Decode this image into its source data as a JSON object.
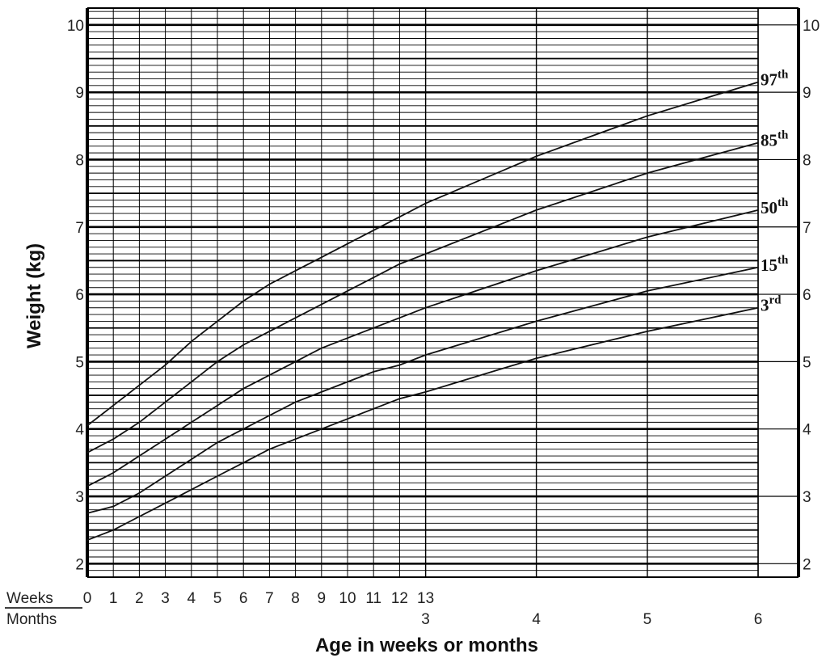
{
  "chart_data": {
    "type": "line",
    "ylabel": "Weight (kg)",
    "xlabel": "Age in weeks or months",
    "row_labels": {
      "weeks": "Weeks",
      "months": "Months"
    },
    "ylim": [
      1.8,
      10.25
    ],
    "y_ticks": [
      2,
      3,
      4,
      5,
      6,
      7,
      8,
      9,
      10
    ],
    "y_ticks_right": [
      "2",
      "3",
      "4",
      "5",
      "6",
      "7",
      "8",
      "9",
      "10"
    ],
    "week_ticks": [
      "0",
      "1",
      "2",
      "3",
      "4",
      "5",
      "6",
      "7",
      "8",
      "9",
      "10",
      "11",
      "12",
      "13"
    ],
    "month_ticks": [
      {
        "label": "3",
        "week": 13
      },
      {
        "label": "4",
        "week": 17.33
      },
      {
        "label": "5",
        "week": 21.67
      },
      {
        "label": "6",
        "week": 26
      }
    ],
    "grid": true,
    "series": [
      {
        "name": "97",
        "suffix": "th",
        "points": [
          [
            0,
            4.05
          ],
          [
            1,
            4.35
          ],
          [
            2,
            4.65
          ],
          [
            3,
            4.95
          ],
          [
            4,
            5.3
          ],
          [
            5,
            5.6
          ],
          [
            6,
            5.9
          ],
          [
            7,
            6.15
          ],
          [
            8,
            6.35
          ],
          [
            9,
            6.55
          ],
          [
            10,
            6.75
          ],
          [
            11,
            6.95
          ],
          [
            12,
            7.15
          ],
          [
            13,
            7.35
          ],
          [
            17.33,
            8.05
          ],
          [
            21.67,
            8.65
          ],
          [
            26,
            9.15
          ]
        ]
      },
      {
        "name": "85",
        "suffix": "th",
        "points": [
          [
            0,
            3.65
          ],
          [
            1,
            3.85
          ],
          [
            2,
            4.1
          ],
          [
            3,
            4.4
          ],
          [
            4,
            4.7
          ],
          [
            5,
            5.0
          ],
          [
            6,
            5.25
          ],
          [
            7,
            5.45
          ],
          [
            8,
            5.65
          ],
          [
            9,
            5.85
          ],
          [
            10,
            6.05
          ],
          [
            11,
            6.25
          ],
          [
            12,
            6.45
          ],
          [
            13,
            6.6
          ],
          [
            17.33,
            7.25
          ],
          [
            21.67,
            7.8
          ],
          [
            26,
            8.25
          ]
        ]
      },
      {
        "name": "50",
        "suffix": "th",
        "points": [
          [
            0,
            3.15
          ],
          [
            1,
            3.35
          ],
          [
            2,
            3.6
          ],
          [
            3,
            3.85
          ],
          [
            4,
            4.1
          ],
          [
            5,
            4.35
          ],
          [
            6,
            4.6
          ],
          [
            7,
            4.8
          ],
          [
            8,
            5.0
          ],
          [
            9,
            5.2
          ],
          [
            10,
            5.35
          ],
          [
            11,
            5.5
          ],
          [
            12,
            5.65
          ],
          [
            13,
            5.8
          ],
          [
            17.33,
            6.35
          ],
          [
            21.67,
            6.85
          ],
          [
            26,
            7.25
          ]
        ]
      },
      {
        "name": "15",
        "suffix": "th",
        "points": [
          [
            0,
            2.75
          ],
          [
            1,
            2.85
          ],
          [
            2,
            3.05
          ],
          [
            3,
            3.3
          ],
          [
            4,
            3.55
          ],
          [
            5,
            3.8
          ],
          [
            6,
            4.0
          ],
          [
            7,
            4.2
          ],
          [
            8,
            4.4
          ],
          [
            9,
            4.55
          ],
          [
            10,
            4.7
          ],
          [
            11,
            4.85
          ],
          [
            12,
            4.95
          ],
          [
            13,
            5.1
          ],
          [
            17.33,
            5.6
          ],
          [
            21.67,
            6.05
          ],
          [
            26,
            6.4
          ]
        ]
      },
      {
        "name": "3",
        "suffix": "rd",
        "points": [
          [
            0,
            2.35
          ],
          [
            1,
            2.5
          ],
          [
            2,
            2.7
          ],
          [
            3,
            2.9
          ],
          [
            4,
            3.1
          ],
          [
            5,
            3.3
          ],
          [
            6,
            3.5
          ],
          [
            7,
            3.7
          ],
          [
            8,
            3.85
          ],
          [
            9,
            4.0
          ],
          [
            10,
            4.15
          ],
          [
            11,
            4.3
          ],
          [
            12,
            4.45
          ],
          [
            13,
            4.55
          ],
          [
            17.33,
            5.05
          ],
          [
            21.67,
            5.45
          ],
          [
            26,
            5.8
          ]
        ]
      }
    ]
  }
}
